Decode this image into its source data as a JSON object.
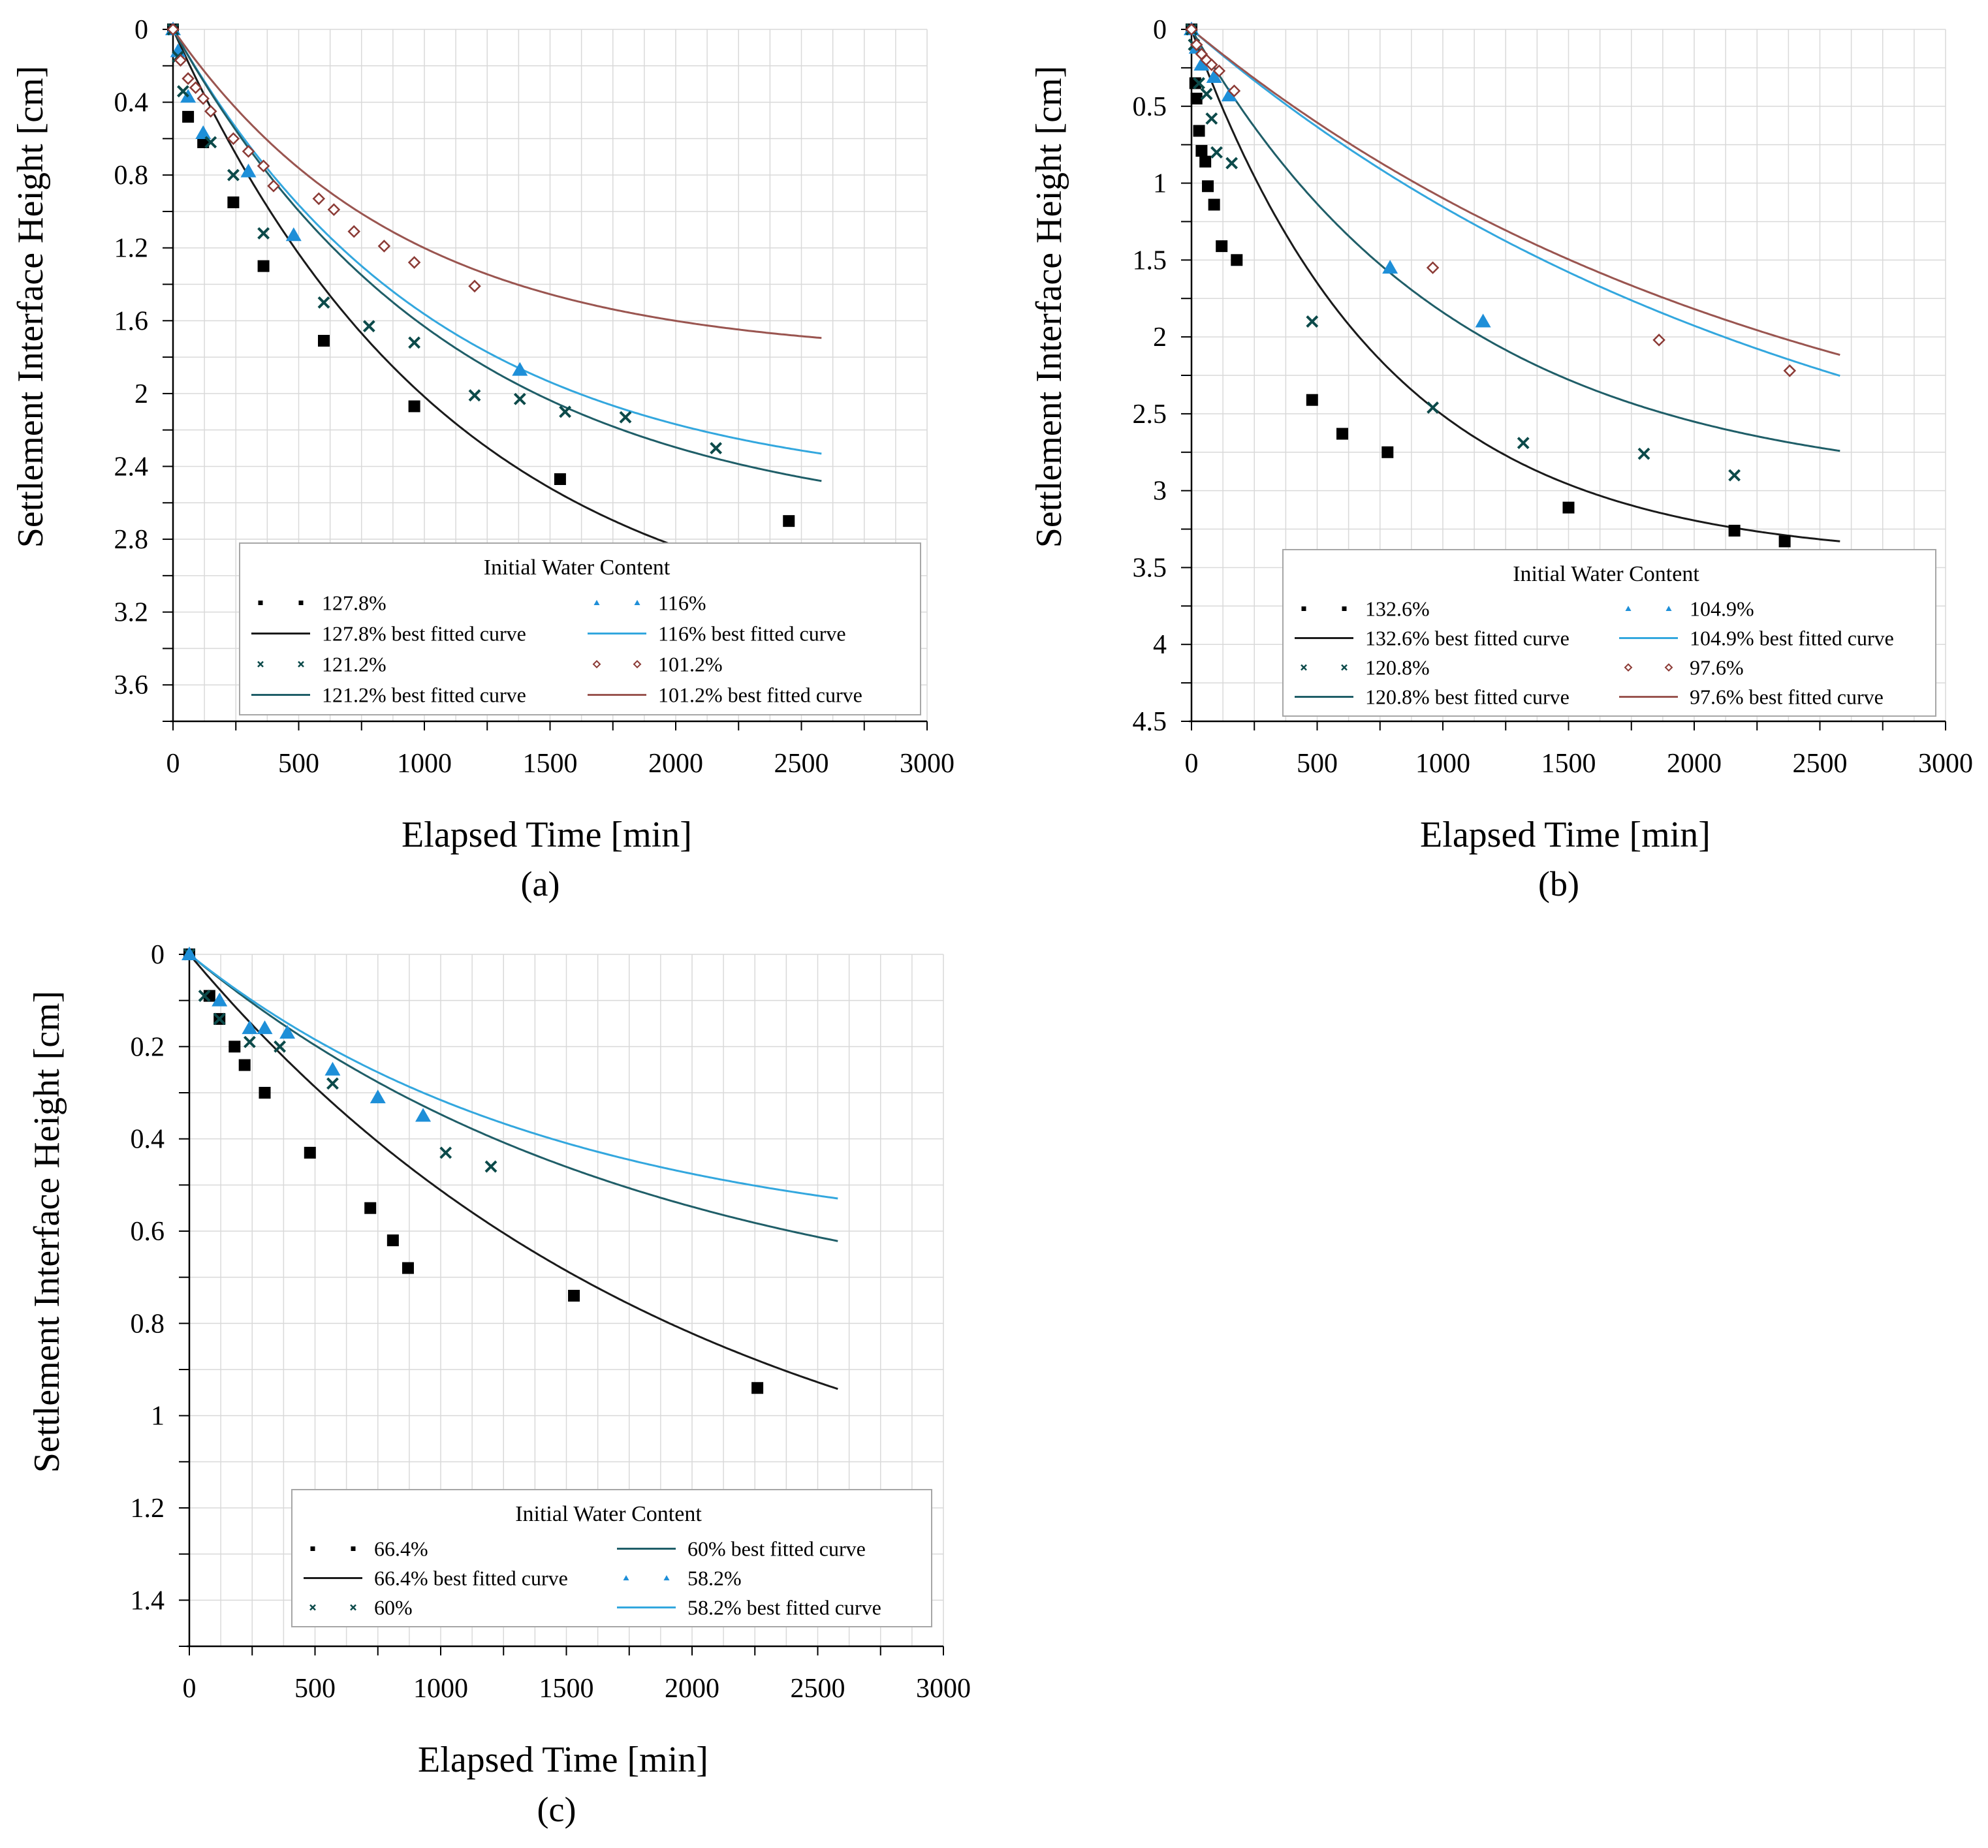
{
  "legend_title": "Initial Water Content",
  "chart_data": [
    {
      "id": "a",
      "type": "scatter",
      "caption": "(a)",
      "xlabel": "Elapsed Time [min]",
      "ylabel": "Settlement Interface Height [cm]",
      "xlim": [
        0,
        3000
      ],
      "ylim": [
        0,
        3.8
      ],
      "y_inverted": true,
      "xticks": [
        0,
        500,
        1000,
        1500,
        2000,
        2500,
        3000
      ],
      "yticks": [
        0,
        0.4,
        0.8,
        1.2,
        1.6,
        2,
        2.4,
        2.8,
        3.2,
        3.6
      ],
      "grid": true,
      "legend_position": "bottom-right",
      "series": [
        {
          "name": "127.8%",
          "fit_label": "127.8% best fitted curve",
          "marker": "square",
          "color": "#000000",
          "fit_color": "#1a1a1a",
          "x": [
            0,
            60,
            120,
            240,
            360,
            600,
            960,
            1540,
            2450
          ],
          "y": [
            0,
            0.48,
            0.62,
            0.95,
            1.3,
            1.71,
            2.07,
            2.47,
            2.7
          ],
          "fit": {
            "a": 3.4,
            "b": 0.0009
          }
        },
        {
          "name": "116%",
          "fit_label": "116% best fitted curve",
          "marker": "triangle",
          "color": "#1e8fd8",
          "fit_color": "#33a7de",
          "x": [
            0,
            20,
            60,
            120,
            300,
            480,
            1380
          ],
          "y": [
            0,
            0.12,
            0.37,
            0.57,
            0.78,
            1.13,
            1.87
          ],
          "fit": {
            "a": 2.55,
            "b": 0.00095
          }
        },
        {
          "name": "121.2%",
          "fit_label": "121.2% best fitted curve",
          "marker": "cross",
          "color": "#0c4a4a",
          "fit_color": "#1f5e68",
          "x": [
            0,
            20,
            40,
            150,
            240,
            360,
            600,
            780,
            960,
            1200,
            1380,
            1560,
            1800,
            2160
          ],
          "y": [
            0,
            0.15,
            0.34,
            0.62,
            0.8,
            1.12,
            1.5,
            1.63,
            1.72,
            2.01,
            2.03,
            2.1,
            2.13,
            2.3
          ],
          "fit": {
            "a": 2.75,
            "b": 0.0009
          }
        },
        {
          "name": "101.2%",
          "fit_label": "101.2% best fitted curve",
          "marker": "diamond",
          "color": "#8b3a35",
          "fit_color": "#9a5550",
          "x": [
            0,
            30,
            60,
            90,
            120,
            150,
            240,
            300,
            360,
            400,
            580,
            640,
            720,
            840,
            960,
            1200
          ],
          "y": [
            0,
            0.17,
            0.27,
            0.32,
            0.38,
            0.45,
            0.6,
            0.67,
            0.75,
            0.86,
            0.93,
            0.99,
            1.11,
            1.19,
            1.28,
            1.41
          ],
          "fit": {
            "a": 1.8,
            "b": 0.0011
          }
        }
      ],
      "legend_rows": [
        [
          "127.8%",
          "116%"
        ],
        [
          "127.8% best fitted curve",
          "116% best fitted curve"
        ],
        [
          "121.2%",
          "101.2%"
        ],
        [
          "121.2% best fitted curve",
          "101.2% best fitted curve"
        ]
      ]
    },
    {
      "id": "b",
      "type": "scatter",
      "caption": "(b)",
      "xlabel": "Elapsed Time [min]",
      "ylabel": "Settlement Interface Height [cm]",
      "xlim": [
        0,
        3000
      ],
      "ylim": [
        0,
        4.5
      ],
      "y_inverted": true,
      "xticks": [
        0,
        500,
        1000,
        1500,
        2000,
        2500,
        3000
      ],
      "yticks": [
        0,
        0.5,
        1,
        1.5,
        2,
        2.5,
        3,
        3.5,
        4,
        4.5
      ],
      "grid": true,
      "legend_position": "bottom-right",
      "series": [
        {
          "name": "132.6%",
          "fit_label": "132.6% best fitted curve",
          "marker": "square",
          "color": "#000000",
          "fit_color": "#1a1a1a",
          "x": [
            0,
            15,
            20,
            30,
            40,
            55,
            65,
            90,
            120,
            180,
            480,
            600,
            780,
            1500,
            2160,
            2360
          ],
          "y": [
            0,
            0.35,
            0.45,
            0.66,
            0.79,
            0.86,
            1.02,
            1.14,
            1.41,
            1.5,
            2.41,
            2.63,
            2.75,
            3.11,
            3.26,
            3.33
          ],
          "fit": {
            "a": 3.45,
            "b": 0.0013
          }
        },
        {
          "name": "104.9%",
          "fit_label": "104.9% best fitted curve",
          "marker": "triangle",
          "color": "#1e8fd8",
          "fit_color": "#33a7de",
          "x": [
            0,
            20,
            40,
            90,
            150,
            790,
            1160
          ],
          "y": [
            0,
            0.12,
            0.23,
            0.31,
            0.43,
            1.55,
            1.9
          ],
          "fit": {
            "a": 3.5,
            "b": 0.0004
          }
        },
        {
          "name": "120.8%",
          "fit_label": "120.8% best fitted curve",
          "marker": "cross",
          "color": "#0c4a4a",
          "fit_color": "#1f5e68",
          "x": [
            0,
            10,
            30,
            60,
            80,
            100,
            160,
            480,
            960,
            1320,
            1800,
            2160
          ],
          "y": [
            0,
            0.1,
            0.35,
            0.42,
            0.58,
            0.8,
            0.87,
            1.9,
            2.46,
            2.69,
            2.76,
            2.9
          ],
          "fit": {
            "a": 3.0,
            "b": 0.00095
          }
        },
        {
          "name": "97.6%",
          "fit_label": "97.6% best fitted curve",
          "marker": "diamond",
          "color": "#8b3a35",
          "fit_color": "#9a5550",
          "x": [
            0,
            20,
            40,
            60,
            80,
            110,
            170,
            960,
            1860,
            2380
          ],
          "y": [
            0,
            0.1,
            0.16,
            0.2,
            0.23,
            0.27,
            0.4,
            1.55,
            2.02,
            2.22
          ],
          "fit": {
            "a": 3.2,
            "b": 0.00042
          }
        }
      ],
      "legend_rows": [
        [
          "132.6%",
          "104.9%"
        ],
        [
          "132.6% best fitted curve",
          "104.9% best fitted curve"
        ],
        [
          "120.8%",
          "97.6%"
        ],
        [
          "120.8% best fitted curve",
          "97.6% best fitted curve"
        ]
      ]
    },
    {
      "id": "c",
      "type": "scatter",
      "caption": "(c)",
      "xlabel": "Elapsed Time [min]",
      "ylabel": "Settlement Interface Height [cm]",
      "xlim": [
        0,
        3000
      ],
      "ylim": [
        0,
        1.5
      ],
      "y_inverted": true,
      "xticks": [
        0,
        500,
        1000,
        1500,
        2000,
        2500,
        3000
      ],
      "yticks": [
        0,
        0.2,
        0.4,
        0.6,
        0.8,
        1,
        1.2,
        1.4
      ],
      "grid": true,
      "legend_position": "bottom-right",
      "series": [
        {
          "name": "66.4%",
          "fit_label": "66.4% best fitted curve",
          "marker": "square",
          "color": "#000000",
          "fit_color": "#1a1a1a",
          "x": [
            0,
            80,
            120,
            180,
            220,
            300,
            480,
            720,
            810,
            870,
            1530,
            2260
          ],
          "y": [
            0,
            0.09,
            0.14,
            0.2,
            0.24,
            0.3,
            0.43,
            0.55,
            0.62,
            0.68,
            0.74,
            0.94
          ],
          "fit": {
            "a": 1.3,
            "b": 0.0005
          }
        },
        {
          "name": "60%",
          "fit_label": "60% best fitted curve",
          "marker": "cross",
          "color": "#0c4a4a",
          "fit_color": "#1f5e68",
          "x": [
            0,
            60,
            120,
            240,
            360,
            570,
            1020,
            1200
          ],
          "y": [
            0,
            0.09,
            0.14,
            0.19,
            0.2,
            0.28,
            0.43,
            0.46
          ],
          "fit": {
            "a": 0.82,
            "b": 0.00055
          }
        },
        {
          "name": "58.2%",
          "fit_label": "58.2% best fitted curve",
          "marker": "triangle",
          "color": "#1e8fd8",
          "fit_color": "#33a7de",
          "x": [
            0,
            120,
            240,
            300,
            390,
            570,
            750,
            930
          ],
          "y": [
            0,
            0.1,
            0.16,
            0.16,
            0.17,
            0.25,
            0.31,
            0.35
          ],
          "fit": {
            "a": 0.64,
            "b": 0.00068
          }
        }
      ],
      "legend_rows": [
        [
          "66.4%",
          "60% best fitted curve"
        ],
        [
          "66.4% best fitted curve",
          "58.2%"
        ],
        [
          "60%",
          "58.2% best fitted curve"
        ]
      ]
    }
  ]
}
